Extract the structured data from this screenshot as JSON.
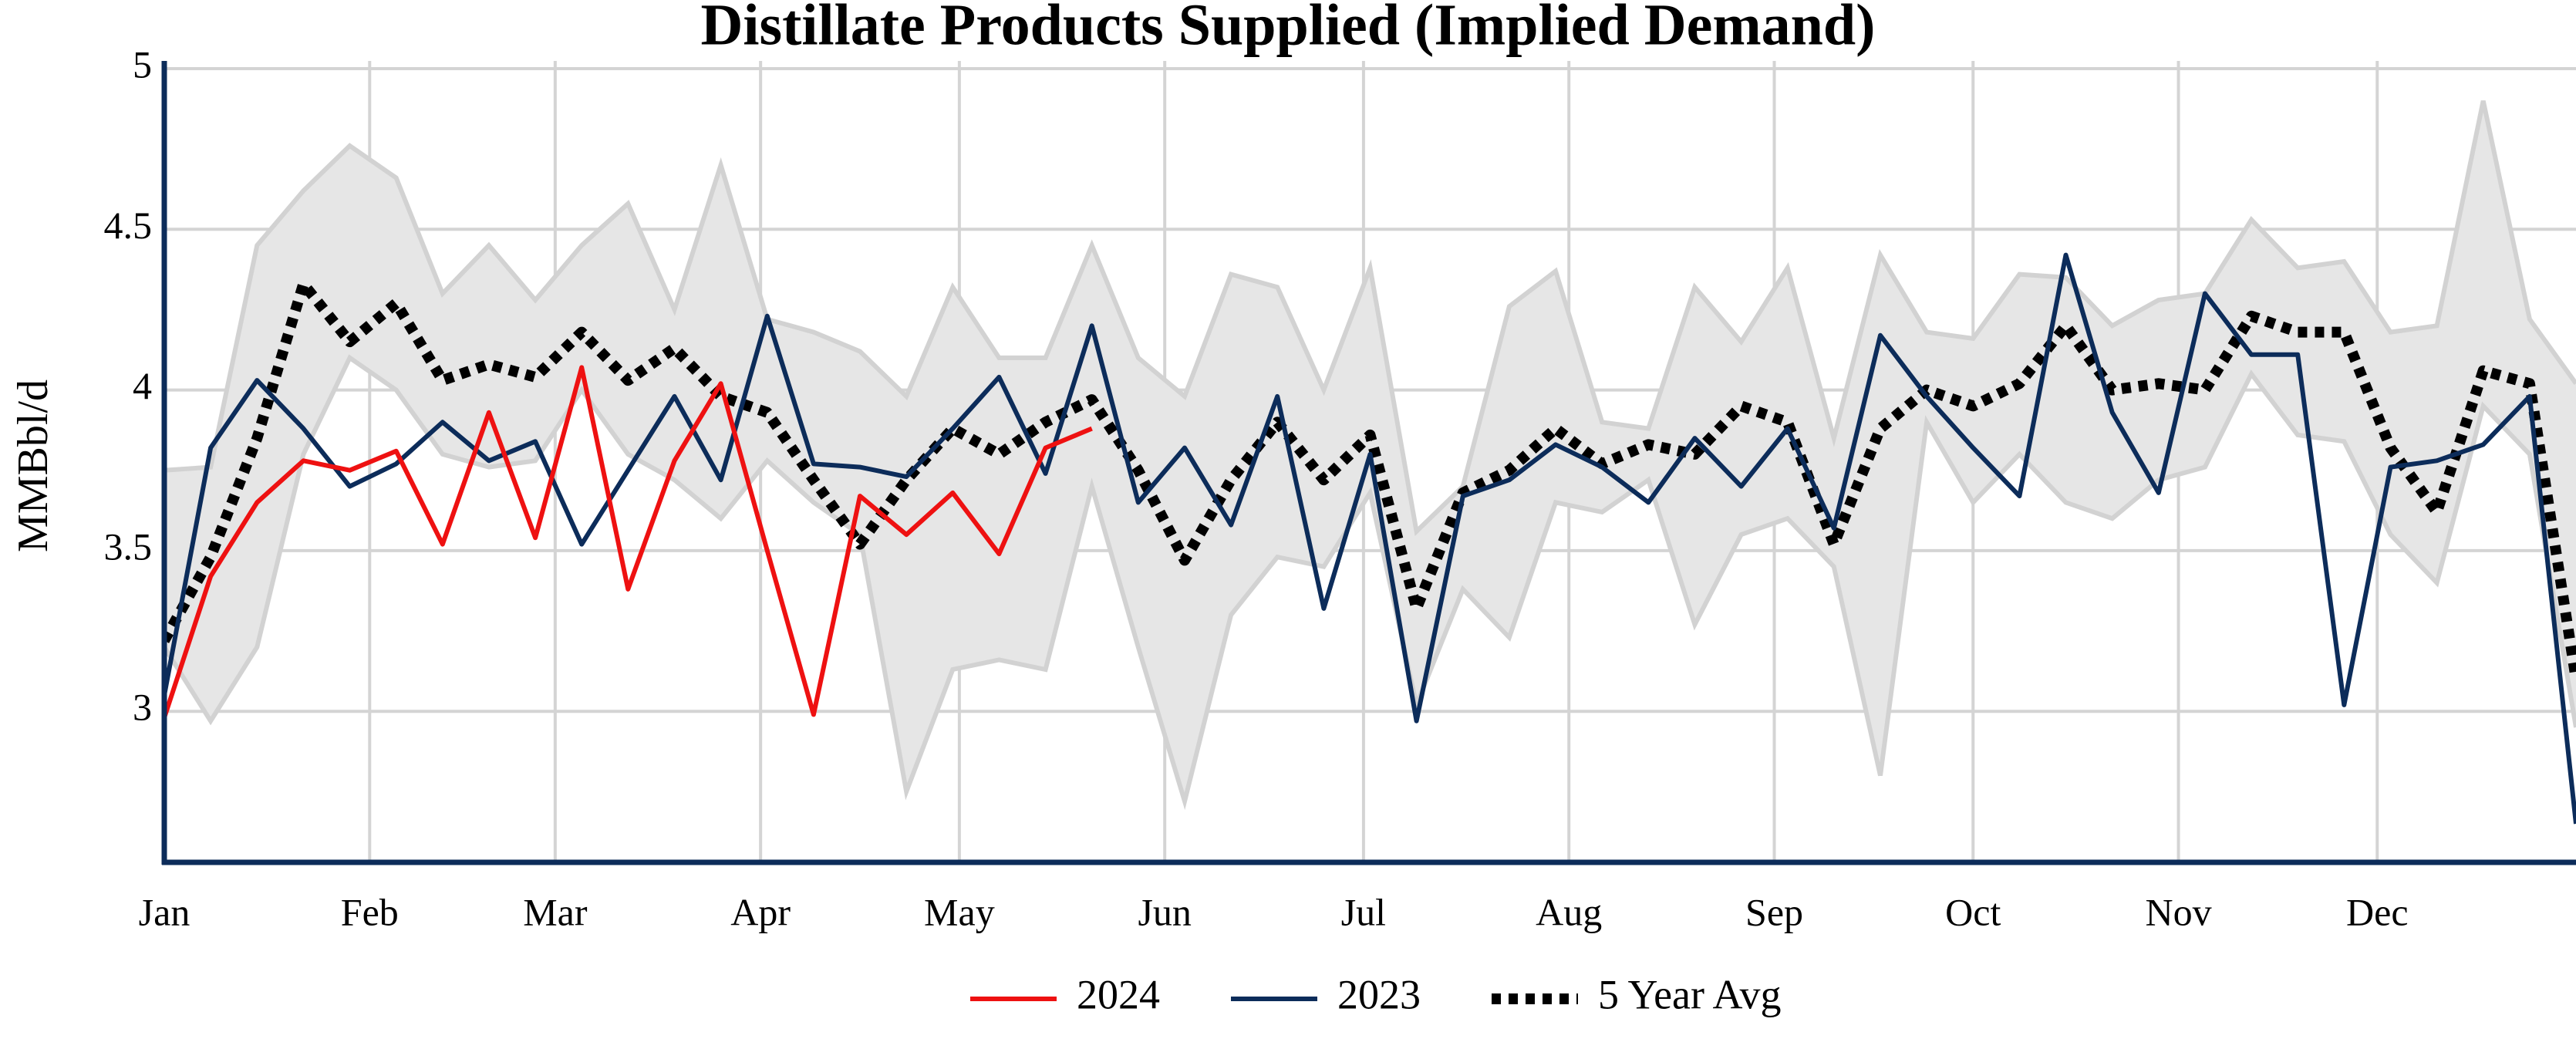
{
  "chart_data": {
    "type": "line",
    "title": "Distillate Products Supplied (Implied Demand)",
    "y_label": "MMBbl/d",
    "x": [
      1,
      8,
      15,
      22,
      29,
      36,
      43,
      50,
      57,
      64,
      71,
      78,
      85,
      92,
      99,
      106,
      113,
      120,
      127,
      134,
      141,
      148,
      155,
      162,
      169,
      176,
      183,
      190,
      197,
      204,
      211,
      218,
      225,
      232,
      239,
      246,
      253,
      260,
      267,
      274,
      281,
      288,
      295,
      302,
      309,
      316,
      323,
      330,
      337,
      344,
      351,
      358,
      365
    ],
    "xlim": [
      1,
      365
    ],
    "xticks": [
      {
        "value": 1,
        "label": "Jan"
      },
      {
        "value": 32,
        "label": "Feb"
      },
      {
        "value": 60,
        "label": "Mar"
      },
      {
        "value": 91,
        "label": "Apr"
      },
      {
        "value": 121,
        "label": "May"
      },
      {
        "value": 152,
        "label": "Jun"
      },
      {
        "value": 182,
        "label": "Jul"
      },
      {
        "value": 213,
        "label": "Aug"
      },
      {
        "value": 244,
        "label": "Sep"
      },
      {
        "value": 274,
        "label": "Oct"
      },
      {
        "value": 305,
        "label": "Nov"
      },
      {
        "value": 335,
        "label": "Dec"
      }
    ],
    "ylim": [
      2.53,
      5
    ],
    "yticks": [
      3,
      3.5,
      4,
      4.5,
      5
    ],
    "grid": true,
    "legend": "bottom",
    "band": {
      "color": "#e6e6e6",
      "edge_color": "#d2d2d2",
      "upper": [
        3.75,
        3.76,
        4.45,
        4.62,
        4.76,
        4.66,
        4.3,
        4.45,
        4.28,
        4.45,
        4.58,
        4.25,
        4.7,
        4.22,
        4.18,
        4.12,
        3.98,
        4.32,
        4.1,
        4.1,
        4.45,
        4.1,
        3.98,
        4.36,
        4.32,
        4.0,
        4.38,
        3.56,
        3.7,
        4.26,
        4.37,
        3.9,
        3.88,
        4.32,
        4.15,
        4.38,
        3.85,
        4.42,
        4.18,
        4.16,
        4.36,
        4.35,
        4.2,
        4.28,
        4.3,
        4.53,
        4.38,
        4.4,
        4.18,
        4.2,
        4.9,
        4.22,
        4.02
      ],
      "lower": [
        3.2,
        2.97,
        3.2,
        3.8,
        4.1,
        4.0,
        3.8,
        3.76,
        3.78,
        4.0,
        3.8,
        3.72,
        3.6,
        3.78,
        3.65,
        3.55,
        2.75,
        3.13,
        3.16,
        3.13,
        3.7,
        3.2,
        2.72,
        3.3,
        3.48,
        3.45,
        3.68,
        3.02,
        3.38,
        3.23,
        3.65,
        3.62,
        3.72,
        3.27,
        3.55,
        3.6,
        3.45,
        2.8,
        3.9,
        3.65,
        3.8,
        3.65,
        3.6,
        3.72,
        3.76,
        4.05,
        3.86,
        3.84,
        3.55,
        3.4,
        3.95,
        3.8,
        2.95
      ]
    },
    "series": [
      {
        "name": "2024",
        "color": "#ee1111",
        "dash": "solid",
        "values": [
          2.98,
          3.42,
          3.65,
          3.78,
          3.75,
          3.81,
          3.52,
          3.93,
          3.54,
          4.07,
          3.38,
          3.78,
          4.02,
          3.5,
          2.99,
          3.67,
          3.55,
          3.68,
          3.49,
          3.82,
          3.88,
          null,
          null,
          null,
          null,
          null,
          null,
          null,
          null,
          null,
          null,
          null,
          null,
          null,
          null,
          null,
          null,
          null,
          null,
          null,
          null,
          null,
          null,
          null,
          null,
          null,
          null,
          null,
          null,
          null,
          null,
          null,
          null
        ]
      },
      {
        "name": "2023",
        "color": "#0c2c5a",
        "dash": "solid",
        "values": [
          3.05,
          3.82,
          4.03,
          3.88,
          3.7,
          3.77,
          3.9,
          3.78,
          3.84,
          3.52,
          3.75,
          3.98,
          3.72,
          4.23,
          3.77,
          3.76,
          3.73,
          3.88,
          4.04,
          3.74,
          4.2,
          3.65,
          3.82,
          3.58,
          3.98,
          3.32,
          3.8,
          2.97,
          3.67,
          3.72,
          3.83,
          3.76,
          3.65,
          3.85,
          3.7,
          3.88,
          3.57,
          4.17,
          3.98,
          3.82,
          3.67,
          4.42,
          3.93,
          3.68,
          4.3,
          4.11,
          4.11,
          3.02,
          3.76,
          3.78,
          3.83,
          3.98,
          2.65
        ]
      },
      {
        "name": "5 Year Avg",
        "color": "#000000",
        "dash": "dotted",
        "values": [
          3.22,
          3.48,
          3.85,
          4.33,
          4.15,
          4.27,
          4.03,
          4.08,
          4.04,
          4.18,
          4.03,
          4.13,
          3.98,
          3.93,
          3.72,
          3.52,
          3.72,
          3.88,
          3.8,
          3.9,
          3.97,
          3.75,
          3.47,
          3.72,
          3.9,
          3.72,
          3.86,
          3.32,
          3.68,
          3.75,
          3.88,
          3.77,
          3.83,
          3.8,
          3.95,
          3.9,
          3.52,
          3.88,
          4.0,
          3.95,
          4.02,
          4.2,
          4.0,
          4.02,
          4.0,
          4.23,
          4.18,
          4.18,
          3.82,
          3.62,
          4.06,
          4.02,
          3.1
        ]
      }
    ]
  }
}
